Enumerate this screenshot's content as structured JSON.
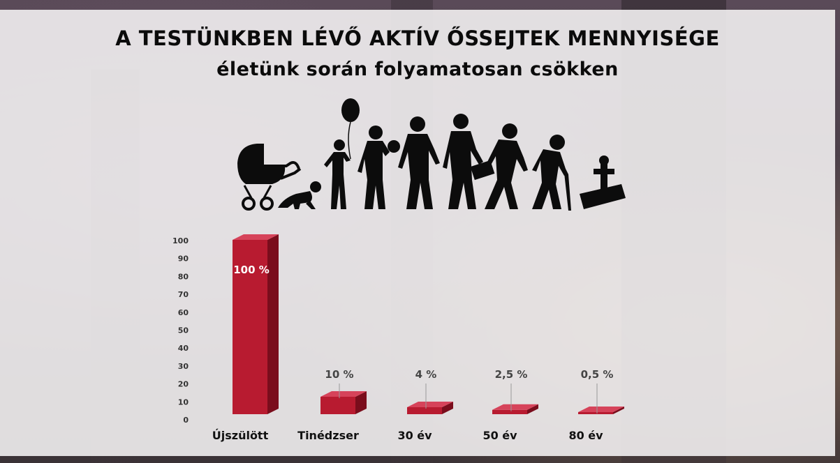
{
  "title": "A TESTÜNKBEN LÉVŐ AKTÍV ŐSSEJTEK MENNYISÉGE",
  "subtitle": "életünk során folyamatosan csökken",
  "illustration": "life-stages-silhouette",
  "chart_data": {
    "type": "bar",
    "categories": [
      "Újszülött",
      "Tinédzser",
      "30 év",
      "50 év",
      "80 év"
    ],
    "values": [
      100,
      10,
      4,
      2.5,
      0.5
    ],
    "data_labels": [
      "100 %",
      "10 %",
      "4 %",
      "2,5 %",
      "0,5 %"
    ],
    "ylim": [
      0,
      100
    ],
    "yticks": [
      0,
      10,
      20,
      30,
      40,
      50,
      60,
      70,
      80,
      90,
      100
    ],
    "bar_color": "#b81b30",
    "grid": false,
    "legend": "none"
  }
}
